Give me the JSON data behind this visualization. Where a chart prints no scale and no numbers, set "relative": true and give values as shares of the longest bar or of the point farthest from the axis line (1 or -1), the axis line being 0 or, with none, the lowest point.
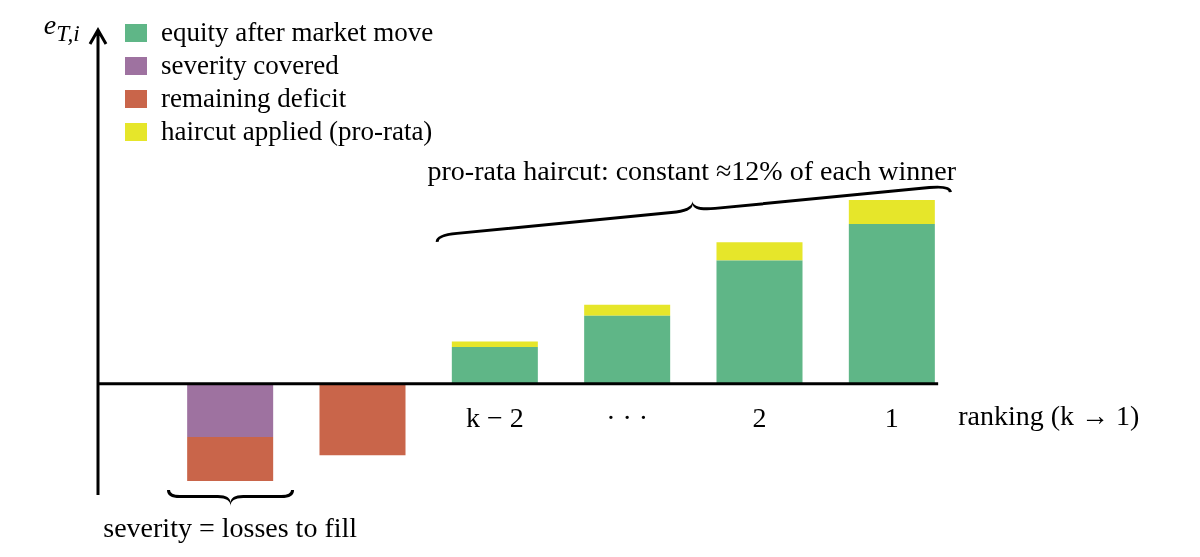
{
  "chart_data": {
    "type": "bar",
    "relative": true,
    "stacked": true,
    "legend": "top left",
    "xlabel": "ranking (k → 1)",
    "categories": [
      null,
      null,
      "k − 2",
      "· · ·",
      "2",
      "1"
    ],
    "series": [
      {
        "name": "equity after market move",
        "color": "#5fb687",
        "values": [
          null,
          null,
          0.2,
          0.37,
          0.67,
          0.87
        ]
      },
      {
        "name": "severity covered",
        "color": "#9e72a0",
        "values": [
          -0.29,
          null,
          null,
          null,
          null,
          null
        ]
      },
      {
        "name": "remaining deficit",
        "color": "#c9654a",
        "values": [
          -0.24,
          -0.39,
          null,
          null,
          null,
          null
        ]
      },
      {
        "name": "haircut applied (pro-rata)",
        "color": "#e6e62a",
        "values": [
          null,
          null,
          0.03,
          0.06,
          0.1,
          0.13
        ]
      }
    ],
    "annotations": [
      "pro-rata haircut: constant ≈12% of each winner",
      "severity = losses to fill",
      "e$_{T,i}$"
    ]
  }
}
